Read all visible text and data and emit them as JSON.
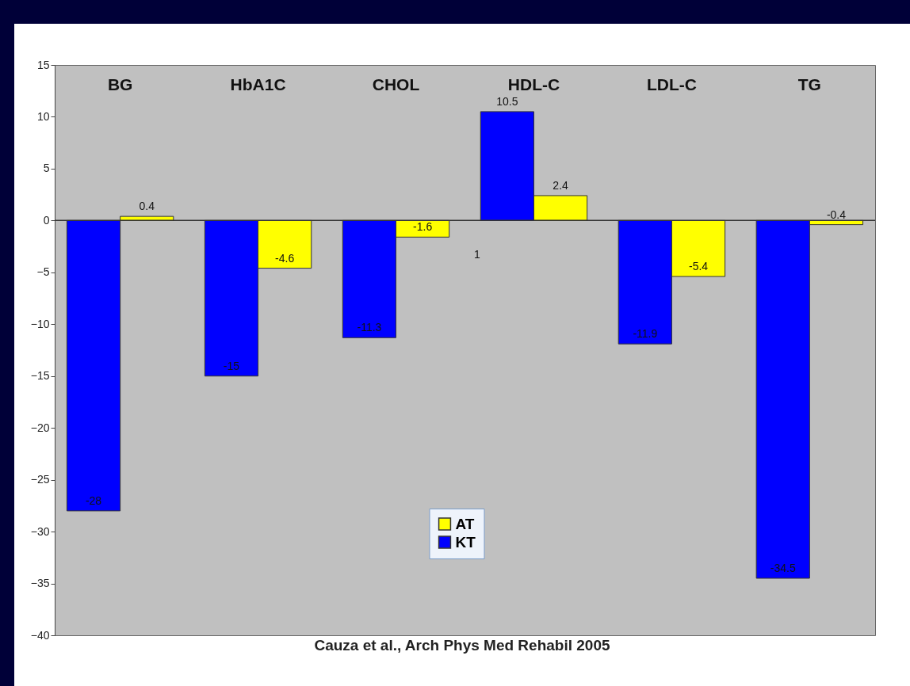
{
  "chart_data": {
    "type": "bar",
    "categories": [
      "BG",
      "HbA1C",
      "CHOL",
      "HDL-C",
      "LDL-C",
      "TG"
    ],
    "series": [
      {
        "name": "KT",
        "color": "#0000ff",
        "values": [
          -28,
          -15,
          -11.3,
          10.5,
          -11.9,
          -34.5
        ],
        "value_labels": [
          "-28",
          "-15",
          "-11.3",
          "10.5",
          "-11.9",
          "-34.5"
        ]
      },
      {
        "name": "AT",
        "color": "#ffff00",
        "values": [
          0.4,
          -4.6,
          -1.6,
          2.4,
          -5.4,
          -0.4
        ],
        "value_labels": [
          "0.4",
          "-4.6",
          "-1.6",
          "2.4",
          "-5.4",
          "-0.4"
        ]
      }
    ],
    "ylim": [
      -40,
      15
    ],
    "yticks": [
      -40,
      -35,
      -30,
      -25,
      -20,
      -15,
      -10,
      -5,
      0,
      5,
      10,
      15
    ],
    "legend": "bottom",
    "annotations": [
      "1",
      "Cauza et al., Arch Phys Med Rehabil 2005"
    ]
  }
}
